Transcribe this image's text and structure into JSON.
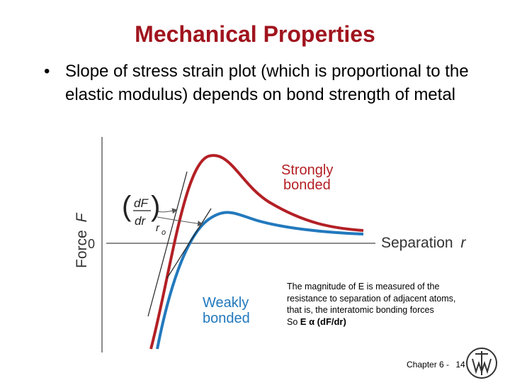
{
  "slide": {
    "title": "Mechanical Properties",
    "bullet_marker": "•",
    "bullet": "Slope of stress strain plot (which is proportional to the elastic modulus) depends on bond strength of metal"
  },
  "diagram": {
    "y_axis_label": "Force",
    "y_axis_symbol": "F",
    "x_axis_label": "Separation",
    "x_axis_symbol": "r",
    "origin_label": "0",
    "strong_label_line1": "Strongly",
    "strong_label_line2": "bonded",
    "weak_label_line1": "Weakly",
    "weak_label_line2": "bonded",
    "deriv_numerator": "dF",
    "deriv_denominator": "dr",
    "deriv_subscript": "o",
    "deriv_subscript_base": "r",
    "colors": {
      "strong": "#b32025",
      "weak": "#2279bd",
      "axis": "#666666",
      "tangent": "#222222"
    }
  },
  "note": {
    "text": "The magnitude of E is measured of the resistance to separation of adjacent atoms, that is, the interatomic bonding forces",
    "prefix": "So",
    "formula": "E α (dF/dr)"
  },
  "footer": {
    "chapter": "Chapter 6 -",
    "page": "14"
  }
}
